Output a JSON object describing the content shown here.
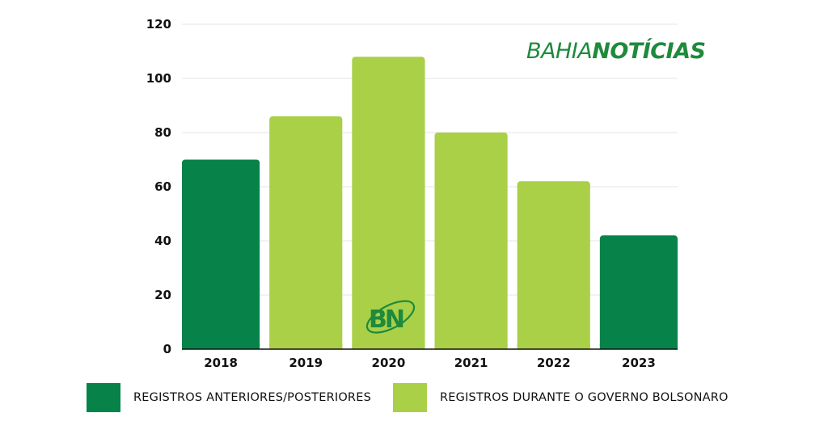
{
  "brand": {
    "part1": "BAHIA",
    "part2": "NOTÍCIAS",
    "color": "#1e8a3c"
  },
  "watermark": {
    "text": "BN",
    "color": "#1e8a3c"
  },
  "colors": {
    "dark": "#07834a",
    "light": "#a9d047",
    "grid": "#e6e6e6"
  },
  "chart_data": {
    "type": "bar",
    "categories": [
      "2018",
      "2019",
      "2020",
      "2021",
      "2022",
      "2023"
    ],
    "values": [
      70,
      86,
      108,
      80,
      62,
      42
    ],
    "series_index": [
      0,
      1,
      1,
      1,
      1,
      0
    ],
    "title": "",
    "xlabel": "",
    "ylabel": "",
    "ylim": [
      0,
      120
    ],
    "yticks": [
      0,
      20,
      40,
      60,
      80,
      100,
      120
    ],
    "grid": true,
    "legend_position": "bottom",
    "series": [
      {
        "name": "REGISTROS ANTERIORES/POSTERIORES",
        "color": "#07834a"
      },
      {
        "name": "REGISTROS DURANTE O GOVERNO BOLSONARO",
        "color": "#a9d047"
      }
    ]
  }
}
